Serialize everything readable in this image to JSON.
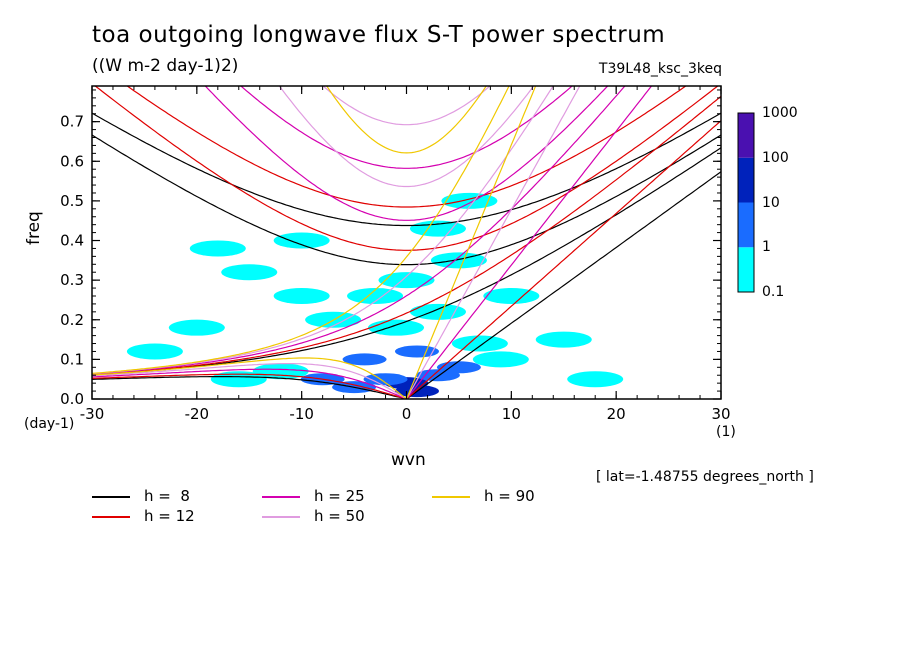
{
  "chart_data": {
    "type": "heatmap",
    "title": "toa outgoing longwave flux S-T power spectrum",
    "subtitle": "((W m-2 day-1)2)",
    "run_label": "T39L48_ksc_3keq",
    "location_label": "[ lat=-1.48755 degrees_north ]",
    "xlabel": "wvn",
    "ylabel": "freq",
    "x_unit": "(1)",
    "y_unit": "(day-1)",
    "xlim": [
      -30,
      30
    ],
    "ylim": [
      0,
      0.79
    ],
    "x_ticks": [
      "-30",
      "-20",
      "-10",
      "0",
      "10",
      "20",
      "30"
    ],
    "y_ticks": [
      "0.0",
      "0.1",
      "0.2",
      "0.3",
      "0.4",
      "0.5",
      "0.6",
      "0.7"
    ],
    "colorbar": {
      "levels": [
        "0.1",
        "1",
        "10",
        "100",
        "1000"
      ],
      "colors": [
        "#00ffff",
        "#1a6cff",
        "#0022bb",
        "#4a10b0"
      ]
    },
    "dispersion_curves": [
      {
        "h_label": "h =  8",
        "h": 8,
        "color": "#000000"
      },
      {
        "h_label": "h = 12",
        "h": 12,
        "color": "#e00000"
      },
      {
        "h_label": "h = 25",
        "h": 25,
        "color": "#d400b0"
      },
      {
        "h_label": "h = 50",
        "h": 50,
        "color": "#e09ce0"
      },
      {
        "h_label": "h = 90",
        "h": 90,
        "color": "#f0c800"
      }
    ],
    "power_blobs": [
      {
        "x": 0,
        "y": 0.04,
        "level": 3
      },
      {
        "x": 1,
        "y": 0.02,
        "level": 3
      },
      {
        "x": -2,
        "y": 0.05,
        "level": 2
      },
      {
        "x": 3,
        "y": 0.06,
        "level": 2
      },
      {
        "x": -5,
        "y": 0.03,
        "level": 2
      },
      {
        "x": -8,
        "y": 0.05,
        "level": 2
      },
      {
        "x": 5,
        "y": 0.08,
        "level": 2
      },
      {
        "x": -4,
        "y": 0.1,
        "level": 2
      },
      {
        "x": 1,
        "y": 0.12,
        "level": 2
      },
      {
        "x": -12,
        "y": 0.07,
        "level": 1
      },
      {
        "x": -16,
        "y": 0.05,
        "level": 1
      },
      {
        "x": 7,
        "y": 0.14,
        "level": 1
      },
      {
        "x": -1,
        "y": 0.18,
        "level": 1
      },
      {
        "x": 3,
        "y": 0.22,
        "level": 1
      },
      {
        "x": -7,
        "y": 0.2,
        "level": 1
      },
      {
        "x": -10,
        "y": 0.26,
        "level": 1
      },
      {
        "x": 0,
        "y": 0.3,
        "level": 1
      },
      {
        "x": 5,
        "y": 0.35,
        "level": 1
      },
      {
        "x": 6,
        "y": 0.5,
        "level": 1
      },
      {
        "x": -3,
        "y": 0.26,
        "level": 1
      },
      {
        "x": -15,
        "y": 0.32,
        "level": 1
      },
      {
        "x": -20,
        "y": 0.18,
        "level": 1
      },
      {
        "x": 10,
        "y": 0.26,
        "level": 1
      },
      {
        "x": 9,
        "y": 0.1,
        "level": 1
      },
      {
        "x": 15,
        "y": 0.15,
        "level": 1
      },
      {
        "x": 18,
        "y": 0.05,
        "level": 1
      },
      {
        "x": -24,
        "y": 0.12,
        "level": 1
      },
      {
        "x": -18,
        "y": 0.38,
        "level": 1
      },
      {
        "x": 3,
        "y": 0.43,
        "level": 1
      },
      {
        "x": -10,
        "y": 0.4,
        "level": 1
      }
    ]
  }
}
